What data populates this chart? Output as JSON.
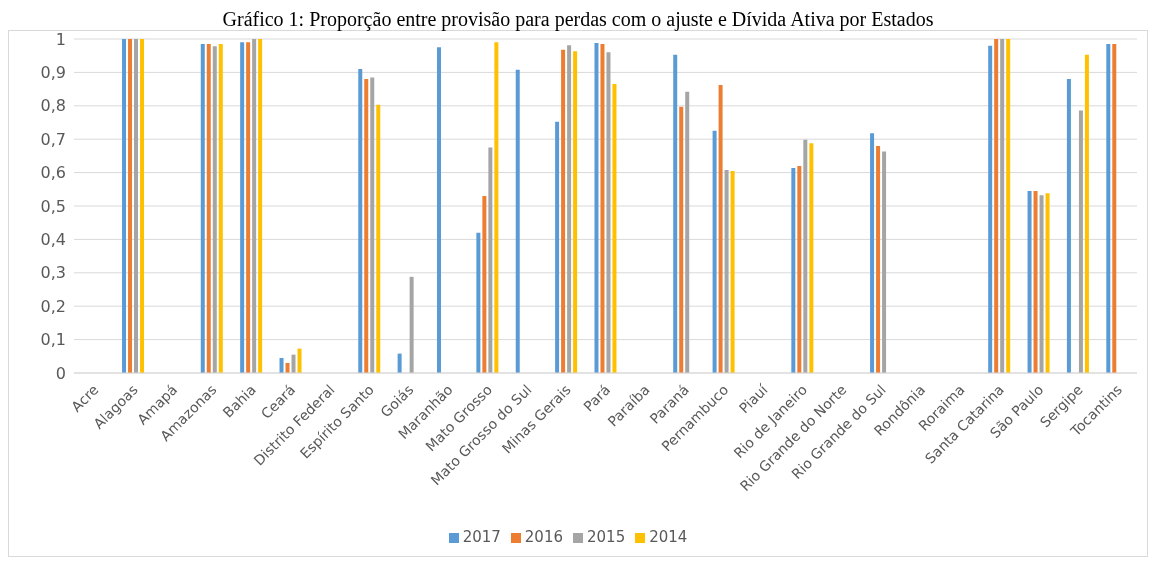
{
  "chart_data": {
    "type": "bar",
    "title": "Gráfico 1: Proporção entre provisão para perdas com o ajuste e Dívida Ativa por Estados",
    "categories": [
      "Acre",
      "Alagoas",
      "Amapá",
      "Amazonas",
      "Bahia",
      "Ceará",
      "Distrito Federal",
      "Espírito Santo",
      "Goiás",
      "Maranhão",
      "Mato Grosso",
      "Mato Grosso do Sul",
      "Minas Gerais",
      "Pará",
      "Paraíba",
      "Paraná",
      "Pernambuco",
      "Piauí",
      "Rio de Janeiro",
      "Rio Grande do Norte",
      "Rio Grande do Sul",
      "Rondônia",
      "Roraima",
      "Santa Catarina",
      "São Paulo",
      "Sergipe",
      "Tocantins"
    ],
    "series": [
      {
        "name": "2017",
        "color": "#5b9bd5",
        "values": [
          null,
          1,
          null,
          0.985,
          0.99,
          0.045,
          null,
          0.91,
          0.058,
          0.975,
          0.42,
          0.908,
          0.752,
          0.988,
          null,
          0.953,
          0.725,
          null,
          0.614,
          null,
          0.718,
          null,
          null,
          0.98,
          0.545,
          0.88,
          0.985
        ]
      },
      {
        "name": "2016",
        "color": "#ed7d31",
        "values": [
          null,
          1,
          null,
          0.985,
          0.99,
          0.03,
          null,
          0.88,
          null,
          null,
          0.53,
          null,
          0.968,
          0.985,
          null,
          0.797,
          0.862,
          null,
          0.62,
          null,
          0.68,
          null,
          null,
          1,
          0.545,
          null,
          0.985
        ]
      },
      {
        "name": "2015",
        "color": "#a5a5a5",
        "values": [
          null,
          1,
          null,
          0.978,
          1,
          0.055,
          null,
          0.885,
          0.288,
          null,
          0.675,
          null,
          0.981,
          0.96,
          null,
          0.842,
          0.608,
          null,
          0.698,
          null,
          0.663,
          null,
          null,
          1,
          0.532,
          0.786,
          null
        ]
      },
      {
        "name": "2014",
        "color": "#ffc000",
        "values": [
          null,
          1,
          null,
          0.985,
          1,
          0.073,
          null,
          0.803,
          null,
          null,
          0.99,
          null,
          0.963,
          0.865,
          null,
          null,
          0.605,
          null,
          0.688,
          null,
          null,
          null,
          null,
          1,
          0.538,
          0.953,
          null
        ]
      }
    ],
    "ylim": [
      0,
      1
    ],
    "yticks": [
      0,
      {
        "value": 0.1,
        "label": "0,1"
      },
      {
        "value": 0.2,
        "label": "0,2"
      },
      {
        "value": 0.3,
        "label": "0,3"
      },
      {
        "value": 0.4,
        "label": "0,4"
      },
      {
        "value": 0.5,
        "label": "0,5"
      },
      {
        "value": 0.6,
        "label": "0,6"
      },
      {
        "value": 0.7,
        "label": "0,7"
      },
      {
        "value": 0.8,
        "label": "0,8"
      },
      {
        "value": 0.9,
        "label": "0,9"
      },
      1
    ],
    "grid": "y",
    "legend": "bottom"
  }
}
